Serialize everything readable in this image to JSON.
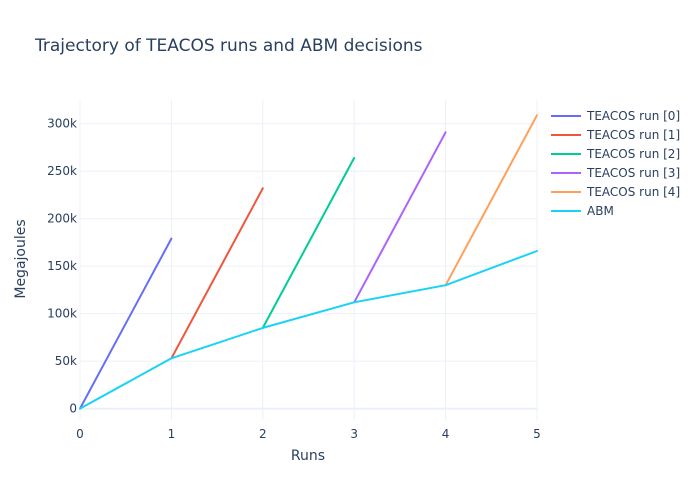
{
  "chart_data": {
    "type": "line",
    "title": "Trajectory of TEACOS runs and ABM decisions",
    "xlabel": "Runs",
    "ylabel": "Megajoules",
    "xlim": [
      0,
      5
    ],
    "ylim": [
      -12000,
      325000
    ],
    "x_ticks": [
      0,
      1,
      2,
      3,
      4,
      5
    ],
    "y_ticks": [
      0,
      50000,
      100000,
      150000,
      200000,
      250000,
      300000
    ],
    "y_tick_labels": [
      "0",
      "50k",
      "100k",
      "150k",
      "200k",
      "250k",
      "300k"
    ],
    "grid": true,
    "legend_position": "top-right, outside plot",
    "series": [
      {
        "name": "TEACOS run [0]",
        "color": "#636efa",
        "x": [
          0,
          1
        ],
        "y": [
          0,
          179000
        ]
      },
      {
        "name": "TEACOS run [1]",
        "color": "#ef553b",
        "x": [
          1,
          2
        ],
        "y": [
          53000,
          232000
        ]
      },
      {
        "name": "TEACOS run [2]",
        "color": "#00cc96",
        "x": [
          2,
          3
        ],
        "y": [
          85000,
          264000
        ]
      },
      {
        "name": "TEACOS run [3]",
        "color": "#ab63fa",
        "x": [
          3,
          4
        ],
        "y": [
          112000,
          291000
        ]
      },
      {
        "name": "TEACOS run [4]",
        "color": "#ffa15a",
        "x": [
          4,
          5
        ],
        "y": [
          130000,
          309000
        ]
      },
      {
        "name": "ABM",
        "color": "#19d3f3",
        "x": [
          0,
          1,
          2,
          3,
          4,
          5
        ],
        "y": [
          0,
          53000,
          85000,
          112000,
          130000,
          166000
        ]
      }
    ]
  }
}
